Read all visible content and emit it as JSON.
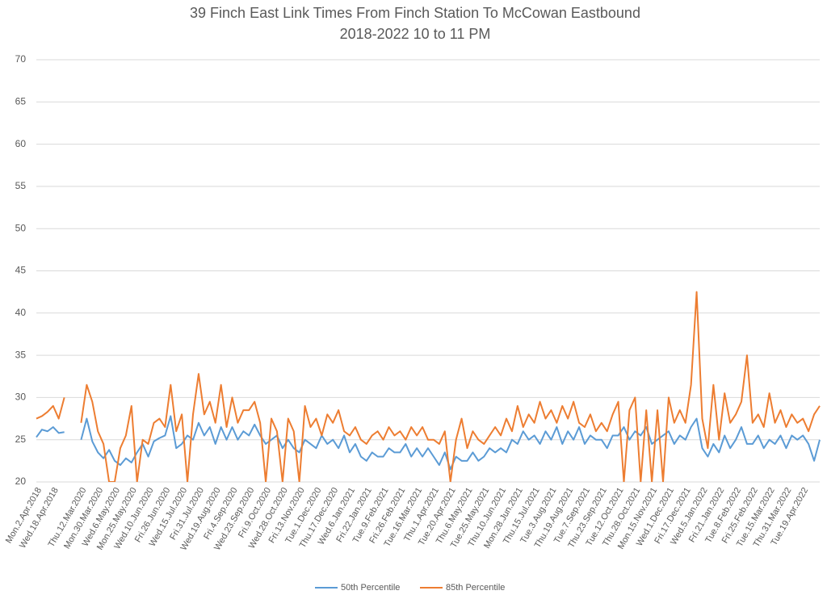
{
  "chart_data": {
    "type": "line",
    "title": "39 Finch East Link Times From Finch Station To McCowan Eastbound",
    "subtitle": "2018-2022 10 to 11 PM",
    "categories": [
      "Mon.2.Apr.2018",
      null,
      null,
      "Wed.18.Apr.2018",
      null,
      null,
      null,
      null,
      "Thu.12.Mar.2020",
      null,
      null,
      "Mon.30.Mar.2020",
      null,
      null,
      "Wed.6.May.2020",
      null,
      null,
      "Mon.25.May.2020",
      null,
      null,
      "Wed.10.Jun.2020",
      null,
      null,
      "Fri.26.Jun.2020",
      null,
      null,
      "Wed.15.Jul.2020",
      null,
      null,
      "Fri.31.Jul.2020",
      null,
      null,
      "Wed.19.Aug.2020",
      null,
      null,
      "Fri.4.Sep.2020",
      null,
      null,
      "Wed.23.Sep.2020",
      null,
      null,
      "Fri.9.Oct.2020",
      null,
      null,
      "Wed.28.Oct.2020",
      null,
      null,
      "Fri.13.Nov.2020",
      null,
      null,
      "Tue.1.Dec.2020",
      null,
      null,
      "Thu.17.Dec.2020",
      null,
      null,
      "Wed.6.Jan.2021",
      null,
      null,
      "Fri.22.Jan.2021",
      null,
      null,
      "Tue.9.Feb.2021",
      null,
      null,
      "Fri.26.Feb.2021",
      null,
      null,
      "Tue.16.Mar.2021",
      null,
      null,
      "Thu.1.Apr.2021",
      null,
      null,
      "Tue.20.Apr.2021",
      null,
      null,
      "Thu.6.May.2021",
      null,
      null,
      "Tue.25.May.2021",
      null,
      null,
      "Thu.10.Jun.2021",
      null,
      null,
      "Mon.28.Jun.2021",
      null,
      null,
      "Thu.15.Jul.2021",
      null,
      null,
      "Tue.3.Aug.2021",
      null,
      null,
      "Thu.19.Aug.2021",
      null,
      null,
      "Tue.7.Sep.2021",
      null,
      null,
      "Thu.23.Sep.2021",
      null,
      null,
      "Tue.12.Oct.2021",
      null,
      null,
      "Thu.28.Oct.2021",
      null,
      null,
      "Mon.15.Nov.2021",
      null,
      null,
      "Wed.1.Dec.2021",
      null,
      null,
      "Fri.17.Dec.2021",
      null,
      null,
      "Wed.5.Jan.2022",
      null,
      null,
      "Fri.21.Jan.2022",
      null,
      null,
      "Tue.8.Feb.2022",
      null,
      null,
      "Fri.25.Feb.2022",
      null,
      null,
      "Tue.15.Mar.2022",
      null,
      null,
      "Thu.31.Mar.2022",
      null,
      null,
      "Tue.19.Apr.2022",
      null,
      null,
      null
    ],
    "series": [
      {
        "name": "50th Percentile",
        "color": "#5b9bd5",
        "values": [
          25.3,
          26.2,
          26.0,
          26.5,
          25.8,
          25.9,
          null,
          null,
          25.0,
          27.5,
          24.8,
          23.5,
          22.8,
          23.8,
          22.5,
          22.0,
          22.8,
          22.3,
          23.5,
          24.5,
          23.0,
          24.8,
          25.2,
          25.5,
          27.8,
          24.0,
          24.5,
          25.5,
          25.0,
          27.0,
          25.5,
          26.5,
          24.5,
          26.5,
          25.0,
          26.5,
          25.0,
          26.0,
          25.5,
          26.8,
          25.5,
          24.5,
          25.0,
          25.5,
          24.0,
          25.0,
          24.0,
          23.5,
          25.0,
          24.5,
          24.0,
          25.5,
          24.5,
          25.0,
          24.0,
          25.5,
          23.5,
          24.5,
          23.0,
          22.5,
          23.5,
          23.0,
          23.0,
          24.0,
          23.5,
          23.5,
          24.5,
          23.0,
          24.0,
          23.0,
          24.0,
          23.0,
          22.0,
          23.5,
          21.5,
          23.0,
          22.5,
          22.5,
          23.5,
          22.5,
          23.0,
          24.0,
          23.5,
          24.0,
          23.5,
          25.0,
          24.5,
          26.0,
          25.0,
          25.5,
          24.5,
          26.0,
          25.0,
          26.5,
          24.5,
          26.0,
          25.0,
          26.5,
          24.5,
          25.5,
          25.0,
          25.0,
          24.0,
          25.5,
          25.5,
          26.5,
          25.0,
          26.0,
          25.5,
          26.5,
          24.5,
          25.0,
          25.5,
          26.0,
          24.5,
          25.5,
          25.0,
          26.5,
          27.5,
          24.0,
          23.0,
          24.5,
          23.5,
          25.5,
          24.0,
          25.0,
          26.5,
          24.5,
          24.5,
          25.5,
          24.0,
          25.0,
          24.5,
          25.5,
          24.0,
          25.5,
          25.0,
          25.5,
          24.5,
          22.5,
          25.0
        ]
      },
      {
        "name": "85th Percentile",
        "color": "#ed7d31",
        "values": [
          27.5,
          27.8,
          28.3,
          29.0,
          27.5,
          30.0,
          null,
          null,
          27.0,
          31.5,
          29.5,
          26.0,
          24.5,
          20,
          20,
          24.0,
          25.5,
          29.0,
          20,
          25.0,
          24.5,
          27.0,
          27.5,
          26.5,
          31.5,
          26.0,
          28.0,
          20,
          28.0,
          32.8,
          28.0,
          29.5,
          27.0,
          31.5,
          26.5,
          30.0,
          27.0,
          28.5,
          28.5,
          29.5,
          27.0,
          20,
          27.5,
          26.0,
          20,
          27.5,
          26.0,
          20,
          29.0,
          26.5,
          27.5,
          25.5,
          28.0,
          27.0,
          28.5,
          26.0,
          25.5,
          26.5,
          25.0,
          24.5,
          25.5,
          26.0,
          25.0,
          26.5,
          25.5,
          26.0,
          25.0,
          26.5,
          25.5,
          26.5,
          25.0,
          25.0,
          24.5,
          26.0,
          20,
          25.0,
          27.5,
          24.0,
          26.0,
          25.0,
          24.5,
          25.5,
          26.5,
          25.5,
          27.5,
          26.0,
          29.0,
          26.5,
          28.0,
          27.0,
          29.5,
          27.5,
          28.5,
          27.0,
          29.0,
          27.5,
          29.5,
          27.0,
          26.5,
          28.0,
          26.0,
          27.0,
          26.0,
          28.0,
          29.5,
          20,
          28.5,
          30.0,
          20,
          28.5,
          20,
          28.5,
          20,
          30.0,
          27.0,
          28.5,
          27.0,
          31.5,
          42.5,
          27.5,
          24.0,
          31.5,
          25.0,
          30.5,
          27.0,
          28.0,
          29.5,
          35.0,
          27.0,
          28.0,
          26.5,
          30.5,
          27.0,
          28.5,
          26.5,
          28.0,
          27.0,
          27.5,
          26.0,
          28.0,
          29.0
        ]
      }
    ],
    "ylim": [
      20,
      70
    ],
    "yticks": [
      20,
      25,
      30,
      35,
      40,
      45,
      50,
      55,
      60,
      65,
      70
    ],
    "grid": true,
    "legend": "bottom"
  }
}
